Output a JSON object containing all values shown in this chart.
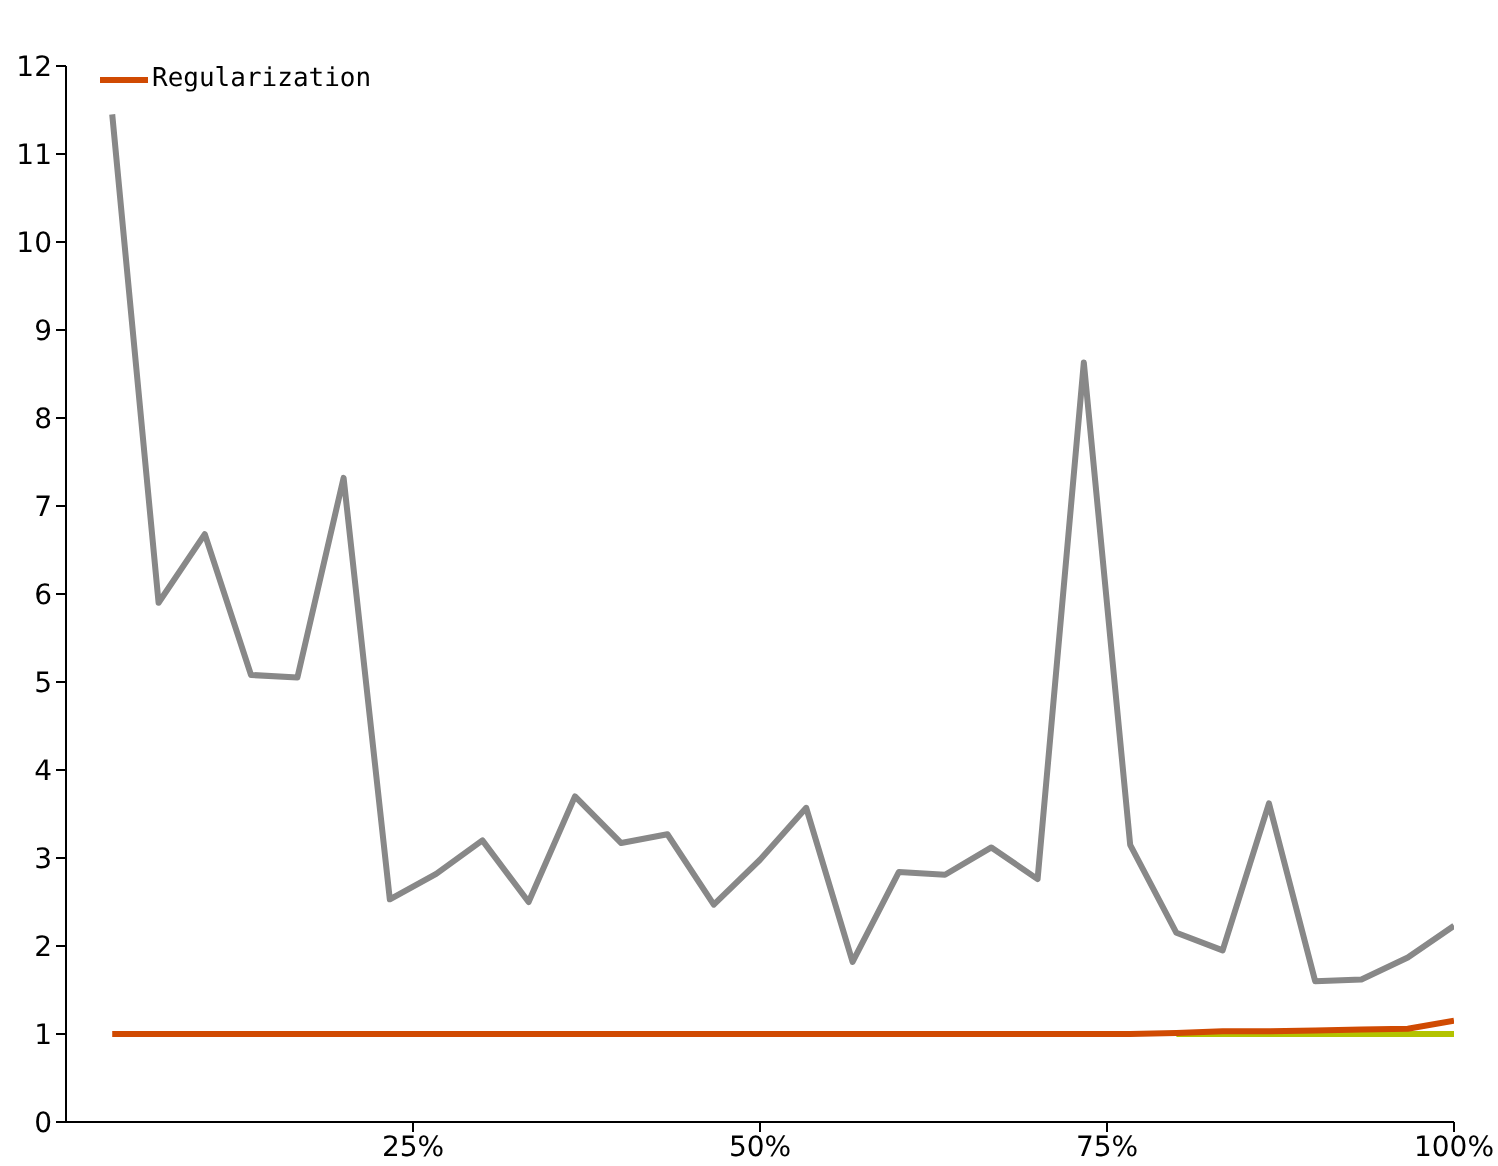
{
  "chart_data": {
    "type": "line",
    "x": [
      3.33,
      6.67,
      10,
      13.33,
      16.67,
      20,
      23.33,
      26.67,
      30,
      33.33,
      36.67,
      40,
      43.33,
      46.67,
      50,
      53.33,
      56.67,
      60,
      63.33,
      66.67,
      70,
      73.33,
      76.67,
      80,
      83.33,
      86.67,
      90,
      93.33,
      96.67,
      100
    ],
    "series": [
      {
        "color": "#b3c300",
        "values": [
          null,
          null,
          null,
          null,
          null,
          null,
          null,
          null,
          null,
          null,
          null,
          null,
          null,
          null,
          null,
          null,
          null,
          null,
          null,
          null,
          null,
          null,
          null,
          1,
          1,
          1,
          1,
          1,
          1,
          1
        ]
      },
      {
        "color": "#888888",
        "values": [
          11.45,
          5.9,
          6.68,
          5.08,
          5.05,
          7.32,
          2.53,
          2.82,
          3.2,
          2.5,
          3.7,
          3.17,
          3.27,
          2.47,
          2.98,
          3.57,
          1.82,
          2.84,
          2.81,
          3.12,
          2.76,
          8.63,
          3.15,
          2.15,
          1.95,
          3.62,
          1.6,
          1.62,
          1.87,
          2.23
        ]
      },
      {
        "name": "Regularization",
        "color": "#d04a02",
        "values": [
          1,
          1,
          1,
          1,
          1,
          1,
          1,
          1,
          1,
          1,
          1,
          1,
          1,
          1,
          1,
          1,
          1,
          1,
          1,
          1,
          1,
          1,
          1,
          1.01,
          1.03,
          1.03,
          1.04,
          1.05,
          1.06,
          1.15
        ]
      }
    ],
    "xlim": [
      0,
      100
    ],
    "xticks": [
      {
        "value": 25,
        "label": "25%"
      },
      {
        "value": 50,
        "label": "50%"
      },
      {
        "value": 75,
        "label": "75%"
      },
      {
        "value": 100,
        "label": "100%"
      }
    ],
    "ylim": [
      0,
      12
    ],
    "yticks": [
      0,
      1,
      2,
      3,
      4,
      5,
      6,
      7,
      8,
      9,
      10,
      11,
      12
    ],
    "legend": "top left",
    "marker": "none",
    "line_style": "solid",
    "grid": false
  }
}
